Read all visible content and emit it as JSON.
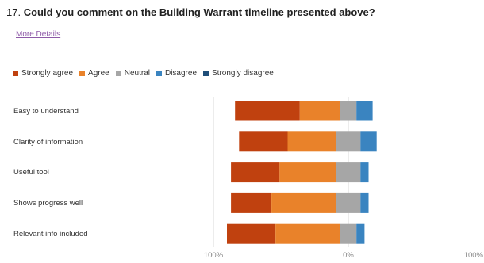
{
  "question": {
    "number": "17.",
    "text": "Could you comment on the Building Warrant timeline presented above?"
  },
  "more_details_label": "More Details",
  "colors": {
    "strongly_agree": "#c0410f",
    "agree": "#e9822a",
    "neutral": "#a6a6a6",
    "disagree": "#3a84c0",
    "strongly_disagree": "#1f4e79",
    "axis_line": "#d9d9d9"
  },
  "chart_data": {
    "type": "bar",
    "orientation": "horizontal-diverging",
    "legend": [
      "Strongly agree",
      "Agree",
      "Neutral",
      "Disagree",
      "Strongly disagree"
    ],
    "categories": [
      "Easy to understand",
      "Clarity of information",
      "Useful tool",
      "Shows progress well",
      "Relevant info included"
    ],
    "series": [
      {
        "name": "Strongly agree",
        "values": [
          48,
          36,
          36,
          30,
          36
        ]
      },
      {
        "name": "Agree",
        "values": [
          30,
          36,
          42,
          48,
          48
        ]
      },
      {
        "name": "Neutral",
        "values": [
          12,
          18,
          18,
          18,
          12
        ]
      },
      {
        "name": "Disagree",
        "values": [
          12,
          12,
          6,
          6,
          6
        ]
      },
      {
        "name": "Strongly disagree",
        "values": [
          0,
          0,
          0,
          0,
          0
        ]
      }
    ],
    "axis_ticks": [
      "100%",
      "0%",
      "100%"
    ],
    "xlim": [
      -100,
      100
    ],
    "legend_position": "top-left"
  }
}
